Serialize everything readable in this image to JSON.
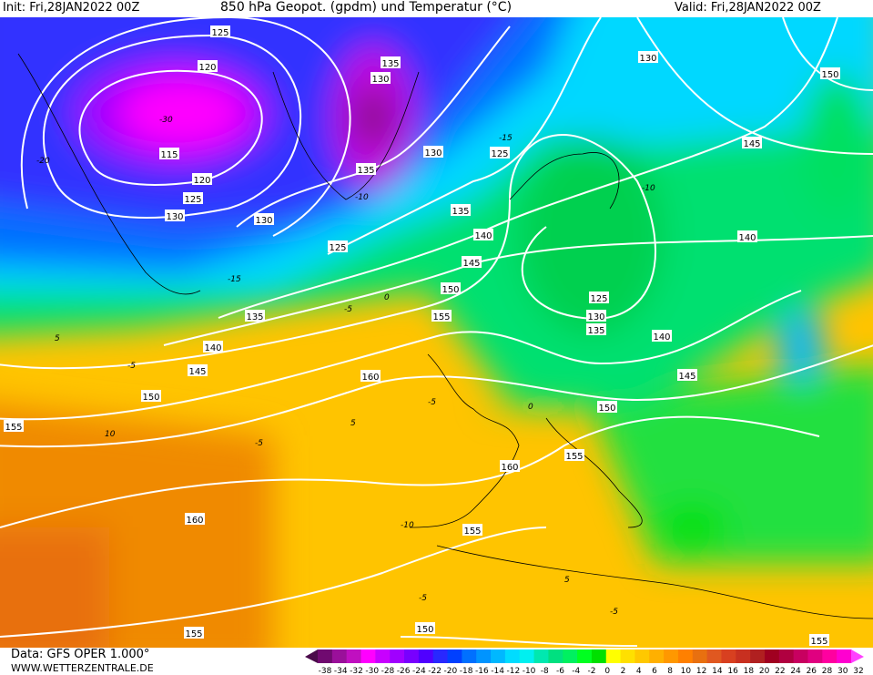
{
  "header": {
    "init": "Init: Fri,28JAN2022 00Z",
    "title": "850 hPa Geopot. (gpdm) und Temperatur (°C)",
    "valid": "Valid: Fri,28JAN2022 00Z"
  },
  "footer": {
    "data_source": "Data: GFS OPER 1.000°",
    "website": "WWW.WETTERZENTRALE.DE"
  },
  "colorbar": {
    "labels": [
      "-38",
      "-34",
      "-32",
      "-30",
      "-28",
      "-26",
      "-24",
      "-22",
      "-20",
      "-18",
      "-16",
      "-14",
      "-12",
      "-10",
      "-8",
      "-6",
      "-4",
      "-2",
      "0",
      "2",
      "4",
      "6",
      "8",
      "10",
      "12",
      "14",
      "16",
      "18",
      "20",
      "22",
      "24",
      "26",
      "28",
      "30",
      "32"
    ],
    "colors": [
      "#4a0a4a",
      "#700a70",
      "#9a109a",
      "#c010c0",
      "#ff00ff",
      "#c800ff",
      "#a000ff",
      "#7800ff",
      "#5000ff",
      "#2828ff",
      "#0040ff",
      "#0070ff",
      "#0094ff",
      "#00b8ff",
      "#00dcff",
      "#00f0f0",
      "#00e8b0",
      "#00e080",
      "#00f060",
      "#00ff20",
      "#00e000",
      "#ffff00",
      "#ffe000",
      "#ffc800",
      "#ffb000",
      "#ff9800",
      "#ff8000",
      "#e87010",
      "#e05820",
      "#d84020",
      "#c83020",
      "#b02020",
      "#a00020",
      "#b00040",
      "#c80060",
      "#e00080",
      "#ff00a0",
      "#ff00d0",
      "#ff40ff"
    ]
  },
  "contour_labels": [
    "125",
    "120",
    "115",
    "120",
    "125",
    "130",
    "130",
    "125",
    "135",
    "130",
    "125",
    "130",
    "150",
    "145",
    "140",
    "135",
    "140",
    "145",
    "150",
    "155",
    "135",
    "140",
    "145",
    "150",
    "155",
    "160",
    "160",
    "160",
    "155",
    "155",
    "150",
    "155",
    "125",
    "130",
    "135",
    "140",
    "145",
    "150",
    "155",
    "135",
    "130"
  ],
  "temperature_labels": [
    "-15",
    "-20",
    "-30",
    "-10",
    "-15",
    "-10",
    "-5",
    "0",
    "-5",
    "0",
    "5",
    "-5",
    "10",
    "-5",
    "-10",
    "5",
    "-5",
    "-5",
    "5"
  ]
}
